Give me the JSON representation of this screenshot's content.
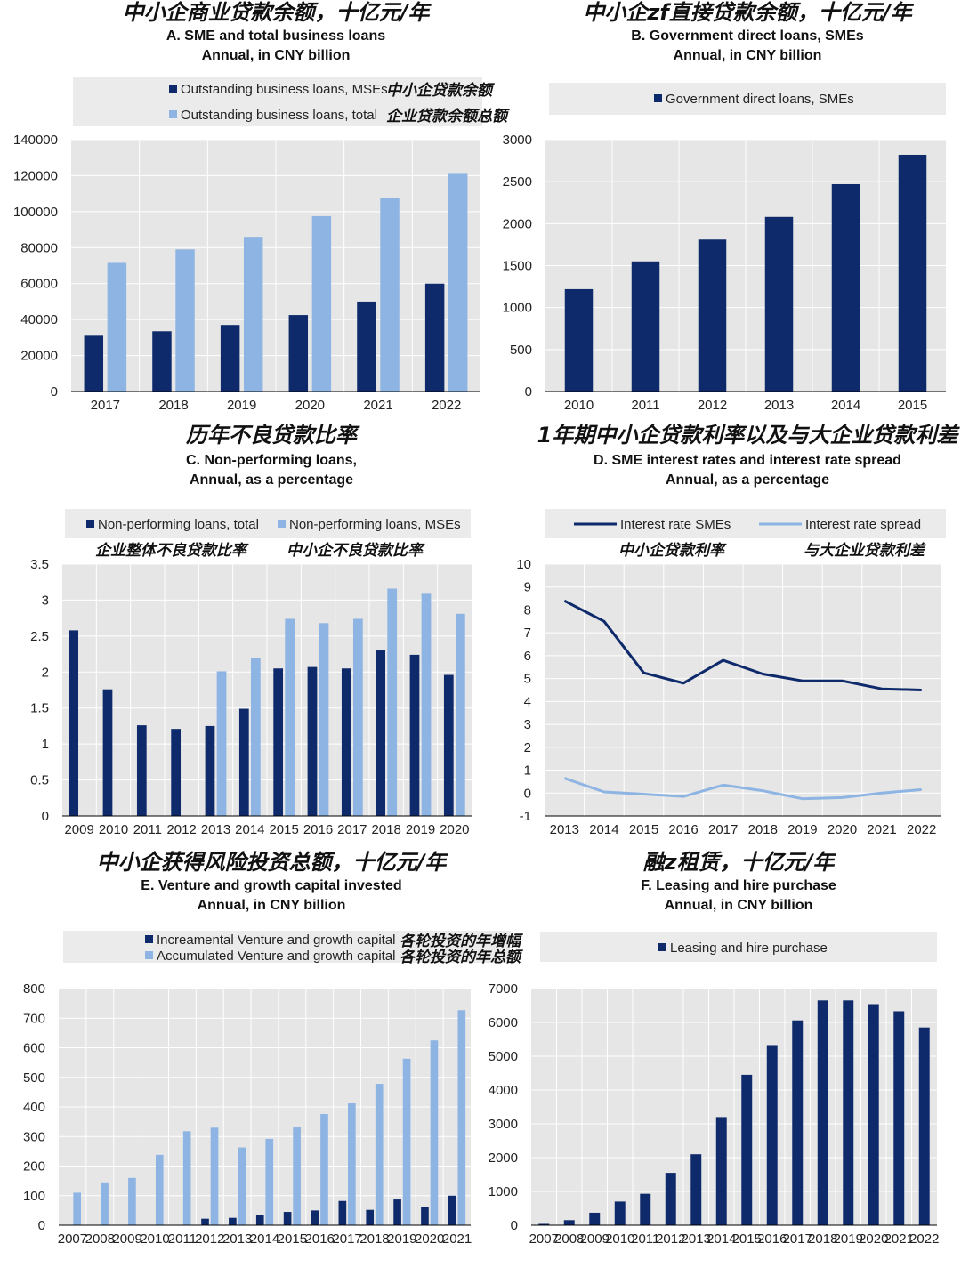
{
  "colors": {
    "dark": "#0e2a6b",
    "light": "#8db4e2",
    "plot_bg": "#e6e6e6",
    "legend_bg": "#ebebeb",
    "grid": "#ffffff"
  },
  "chart_data": [
    {
      "id": "A",
      "type": "bar",
      "title_cn": "中小企商业贷款余额，十亿元/年",
      "title": "A. SME and total business loans",
      "subtitle": "Annual, in CNY billion",
      "categories": [
        "2017",
        "2018",
        "2019",
        "2020",
        "2021",
        "2022"
      ],
      "ylim": [
        0,
        140000
      ],
      "yticks": [
        0,
        20000,
        40000,
        60000,
        80000,
        100000,
        120000,
        140000
      ],
      "series": [
        {
          "name": "Outstanding business loans, MSEs",
          "name_cn": "中小企贷款余额",
          "color": "dark",
          "values": [
            31000,
            33500,
            37000,
            42500,
            50000,
            60000
          ]
        },
        {
          "name": "Outstanding business loans, total",
          "name_cn": "企业贷款余额总额",
          "color": "light",
          "values": [
            71500,
            79000,
            86000,
            97500,
            107500,
            121500
          ]
        }
      ]
    },
    {
      "id": "B",
      "type": "bar",
      "title_cn": "中小企zf直接贷款余额，十亿元/年",
      "title": "B. Government direct loans, SMEs",
      "subtitle": "Annual, in CNY billion",
      "categories": [
        "2010",
        "2011",
        "2012",
        "2013",
        "2014",
        "2015"
      ],
      "ylim": [
        0,
        3000
      ],
      "yticks": [
        0,
        500,
        1000,
        1500,
        2000,
        2500,
        3000
      ],
      "series": [
        {
          "name": "Government direct loans, SMEs",
          "color": "dark",
          "values": [
            1220,
            1550,
            1810,
            2080,
            2470,
            2820
          ]
        }
      ]
    },
    {
      "id": "C",
      "type": "bar",
      "title_cn": "历年不良贷款比率",
      "title": "C. Non-performing loans,",
      "subtitle": "Annual, as a percentage",
      "categories": [
        "2009",
        "2010",
        "2011",
        "2012",
        "2013",
        "2014",
        "2015",
        "2016",
        "2017",
        "2018",
        "2019",
        "2020"
      ],
      "ylim": [
        0,
        3.5
      ],
      "yticks": [
        0,
        0.5,
        1,
        1.5,
        2,
        2.5,
        3,
        3.5
      ],
      "series": [
        {
          "name": "Non-performing loans, total",
          "name_cn": "企业整体不良贷款比率",
          "color": "dark",
          "values": [
            2.58,
            1.76,
            1.26,
            1.21,
            1.25,
            1.49,
            2.05,
            2.07,
            2.05,
            2.3,
            2.24,
            1.96
          ]
        },
        {
          "name": "Non-performing loans, MSEs",
          "name_cn": "中小企不良贷款比率",
          "color": "light",
          "values": [
            null,
            null,
            null,
            null,
            2.01,
            2.2,
            2.74,
            2.68,
            2.74,
            3.16,
            3.1,
            2.81
          ]
        }
      ]
    },
    {
      "id": "D",
      "type": "line",
      "title_cn": "1年期中小企贷款利率以及与大企业贷款利差",
      "title": "D. SME interest rates and interest rate spread",
      "subtitle": "Annual, as a percentage",
      "categories": [
        "2013",
        "2014",
        "2015",
        "2016",
        "2017",
        "2018",
        "2019",
        "2020",
        "2021",
        "2022"
      ],
      "ylim": [
        -1,
        10
      ],
      "yticks": [
        -1,
        0,
        1,
        2,
        3,
        4,
        5,
        6,
        7,
        8,
        9,
        10
      ],
      "series": [
        {
          "name": "Interest rate SMEs",
          "name_cn": "中小企贷款利率",
          "color": "dark",
          "values": [
            8.4,
            7.5,
            5.25,
            4.8,
            5.8,
            5.2,
            4.9,
            4.9,
            4.55,
            4.5
          ]
        },
        {
          "name": "Interest rate spread",
          "name_cn": "与大企业贷款利差",
          "color": "light",
          "values": [
            0.65,
            0.05,
            -0.05,
            -0.15,
            0.35,
            0.1,
            -0.25,
            -0.2,
            0.0,
            0.15
          ]
        }
      ]
    },
    {
      "id": "E",
      "type": "bar",
      "title_cn": "中小企获得风险投资总额，十亿元/年",
      "title": "E. Venture and growth capital invested",
      "subtitle": "Annual, in CNY billion",
      "categories": [
        "2007",
        "2008",
        "2009",
        "2010",
        "2011",
        "2012",
        "2013",
        "2014",
        "2015",
        "2016",
        "2017",
        "2018",
        "2019",
        "2020",
        "2021"
      ],
      "ylim": [
        0,
        800
      ],
      "yticks": [
        0,
        100,
        200,
        300,
        400,
        500,
        600,
        700,
        800
      ],
      "series": [
        {
          "name": "Increamental Venture and growth capital",
          "name_cn": "各轮投资的年增幅",
          "color": "dark",
          "values": [
            0,
            0,
            0,
            0,
            0,
            22,
            25,
            35,
            45,
            50,
            82,
            52,
            87,
            62,
            100
          ]
        },
        {
          "name": "Accumulated Venture and growth capital",
          "name_cn": "各轮投资的年总额",
          "color": "light",
          "values": [
            110,
            145,
            160,
            238,
            318,
            330,
            263,
            292,
            333,
            376,
            412,
            478,
            563,
            625,
            727
          ]
        }
      ]
    },
    {
      "id": "F",
      "type": "bar",
      "title_cn": "融z租赁，十亿元/年",
      "title": "F. Leasing and hire purchase",
      "subtitle": "Annual, in CNY billion",
      "categories": [
        "2007",
        "2008",
        "2009",
        "2010",
        "2011",
        "2012",
        "2013",
        "2014",
        "2015",
        "2016",
        "2017",
        "2018",
        "2019",
        "2020",
        "2021",
        "2022"
      ],
      "ylim": [
        0,
        7000
      ],
      "yticks": [
        0,
        1000,
        2000,
        3000,
        4000,
        5000,
        6000,
        7000
      ],
      "series": [
        {
          "name": "Leasing and hire purchase",
          "color": "dark",
          "values": [
            40,
            150,
            370,
            700,
            930,
            1550,
            2100,
            3200,
            4450,
            5330,
            6060,
            6650,
            6650,
            6540,
            6330,
            5850
          ]
        }
      ]
    }
  ]
}
